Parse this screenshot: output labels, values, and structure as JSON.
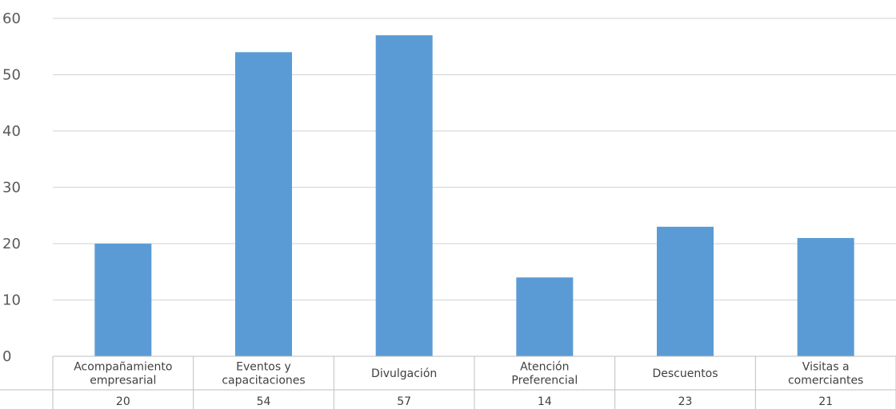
{
  "chart_data": {
    "type": "bar",
    "categories": [
      [
        "Acompañamiento",
        "empresarial"
      ],
      [
        "Eventos y",
        "capacitaciones"
      ],
      [
        "Divulgación"
      ],
      [
        "Atención",
        "Preferencial"
      ],
      [
        "Descuentos"
      ],
      [
        "Visitas a",
        "comerciantes"
      ]
    ],
    "values": [
      20,
      54,
      57,
      14,
      23,
      21
    ],
    "value_labels": [
      "20",
      "54",
      "57",
      "14",
      "23",
      "21"
    ],
    "ylim": [
      0,
      60
    ],
    "yticks": [
      "0",
      "10",
      "20",
      "30",
      "40",
      "50",
      "60"
    ],
    "grid": true,
    "data_table": true,
    "colors": {
      "bar": "#5b9bd5",
      "grid": "#d9d9d9",
      "table_border": "#bfbfbf"
    },
    "title": "",
    "xlabel": "",
    "ylabel": ""
  }
}
